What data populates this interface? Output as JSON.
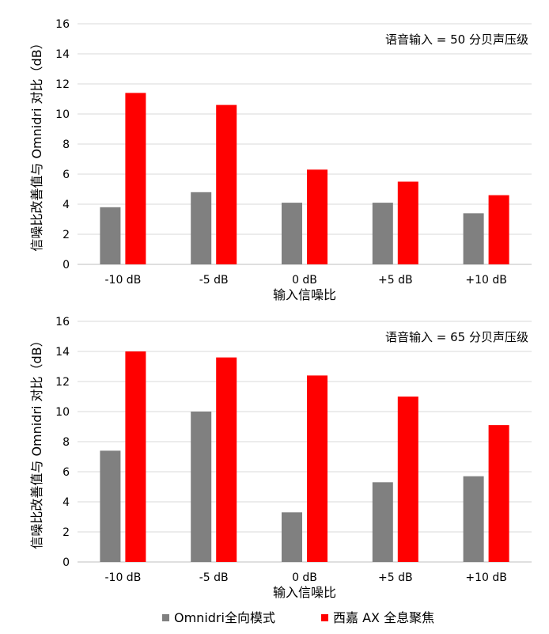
{
  "chart_data": [
    {
      "type": "bar",
      "categories": [
        "-10 dB",
        "-5 dB",
        "0 dB",
        "+5 dB",
        "+10 dB"
      ],
      "series": [
        {
          "name": "Omnidri全向模式",
          "color": "#808080",
          "values": [
            3.8,
            4.8,
            4.1,
            4.1,
            3.4
          ]
        },
        {
          "name": "西嘉 AX 全息聚焦",
          "color": "#ff0000",
          "values": [
            11.4,
            10.6,
            6.3,
            5.5,
            4.6
          ]
        }
      ],
      "annotation": "语音输入 = 50 分贝声压级",
      "xlabel": "输入信噪比",
      "ylabel": "信噪比改善值与 Omnidri 对比（dB）",
      "ylim": [
        0,
        16
      ],
      "yticks": [
        0,
        2,
        4,
        6,
        8,
        10,
        12,
        14,
        16
      ],
      "grid": true
    },
    {
      "type": "bar",
      "categories": [
        "-10 dB",
        "-5 dB",
        "0 dB",
        "+5 dB",
        "+10 dB"
      ],
      "series": [
        {
          "name": "Omnidri全向模式",
          "color": "#808080",
          "values": [
            7.4,
            10.0,
            3.3,
            5.3,
            5.7
          ]
        },
        {
          "name": "西嘉 AX 全息聚焦",
          "color": "#ff0000",
          "values": [
            14.0,
            13.6,
            12.4,
            11.0,
            9.1
          ]
        }
      ],
      "annotation": "语音输入 = 65 分贝声压级",
      "xlabel": "输入信噪比",
      "ylabel": "信噪比改善值与 Omnidri 对比（dB）",
      "ylim": [
        0,
        16
      ],
      "yticks": [
        0,
        2,
        4,
        6,
        8,
        10,
        12,
        14,
        16
      ],
      "grid": true
    }
  ],
  "legend": {
    "placement": "bottom",
    "items": [
      {
        "label": "Omnidri全向模式",
        "color": "#808080"
      },
      {
        "label": "西嘉 AX 全息聚焦",
        "color": "#ff0000"
      }
    ]
  }
}
